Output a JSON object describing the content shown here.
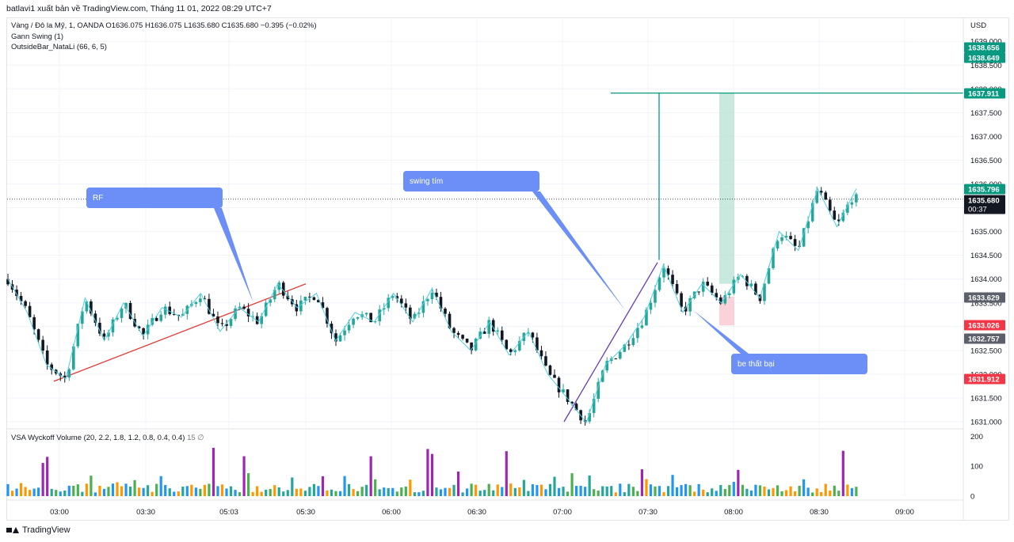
{
  "header": {
    "publish_line": "batlavi1 xuất bản về TradingView.com, Tháng 11 01, 2022 08:29 UTC+7"
  },
  "legend": {
    "symbol_line": "Vàng / Đô la Mỹ, 1, OANDA  O1636.075  H1636.075  L1635.680  C1635.680  −0.395 (−0.02%)",
    "indicator1": "Gann Swing (1)",
    "indicator2": "OutsideBar_NataLi (66, 6, 5)",
    "volume_name": "VSA Wyckoff Volume (20, 2.2, 1.8, 1.2, 0.8, 0.4, 0.4)",
    "volume_value": "15",
    "volume_extra": "∅"
  },
  "footer": {
    "brand": "TradingView"
  },
  "colors": {
    "up": "#26a69a",
    "down": "#131722",
    "swing": "#4dd0e1",
    "trend_red": "#e53935",
    "trend_purple": "#673ab7",
    "callout": "#6b8ff7",
    "target_green": "#089981",
    "stop_red": "#f23645"
  },
  "chart_data": {
    "type": "candlestick",
    "currency": "USD",
    "price_axis": {
      "ticks": [
        1631.0,
        1631.5,
        1632.0,
        1632.5,
        1633.0,
        1633.5,
        1634.0,
        1634.5,
        1635.0,
        1635.5,
        1636.0,
        1636.5,
        1637.0,
        1637.5,
        1638.0,
        1638.5,
        1639.0
      ],
      "tick_labels": [
        "1631.000",
        "1631.500",
        "1632.000",
        "1632.500",
        "1633.000",
        "1633.500",
        "1634.000",
        "1634.500",
        "1635.000",
        "1635.500",
        "1636.000",
        "1636.500",
        "1637.000",
        "1637.500",
        "1638.000",
        "1638.500",
        "1639.000"
      ],
      "range": [
        1630.95,
        1639.1
      ]
    },
    "time_axis": {
      "labels": [
        "03:00",
        "03:30",
        "05:03",
        "05:30",
        "06:00",
        "06:30",
        "07:00",
        "07:30",
        "08:00",
        "08:30",
        "09:00"
      ]
    },
    "price_badges": [
      {
        "value": "1638.656",
        "color": "#089981"
      },
      {
        "value": "1638.649",
        "color": "#089981"
      },
      {
        "value": "1637.911",
        "color": "#089981"
      },
      {
        "value": "1635.796",
        "color": "#089981"
      },
      {
        "value": "1635.680",
        "color": "#131722",
        "sub": "00:37"
      },
      {
        "value": "1633.629",
        "color": "#5d606b"
      },
      {
        "value": "1633.026",
        "color": "#f23645"
      },
      {
        "value": "1632.757",
        "color": "#5d606b"
      },
      {
        "value": "1631.912",
        "color": "#f23645"
      }
    ],
    "last_price": 1635.68,
    "target_level": 1637.911,
    "swing_points": [
      1634.0,
      1633.3,
      1632.2,
      1631.9,
      1633.6,
      1632.7,
      1633.5,
      1632.8,
      1633.4,
      1633.2,
      1633.7,
      1632.9,
      1633.4,
      1633.1,
      1633.9,
      1633.4,
      1633.7,
      1632.7,
      1633.3,
      1633.1,
      1633.7,
      1633.1,
      1633.8,
      1632.9,
      1632.5,
      1633.1,
      1632.4,
      1632.9,
      1632.0,
      1631.5,
      1630.98,
      1632.2,
      1632.6,
      1633.2,
      1634.3,
      1633.3,
      1633.9,
      1633.5,
      1634.1,
      1633.6,
      1635.0,
      1634.6,
      1635.9,
      1635.1,
      1635.9
    ],
    "series": [
      {
        "name": "VSA Wyckoff Volume",
        "axis_labels": [
          "200",
          "100",
          "0"
        ],
        "range": [
          0,
          200
        ]
      }
    ],
    "annotations": [
      {
        "text": "RF",
        "kind": "callout"
      },
      {
        "text": "swing tím",
        "kind": "callout"
      },
      {
        "text": "be thất bại",
        "kind": "callout"
      }
    ]
  }
}
